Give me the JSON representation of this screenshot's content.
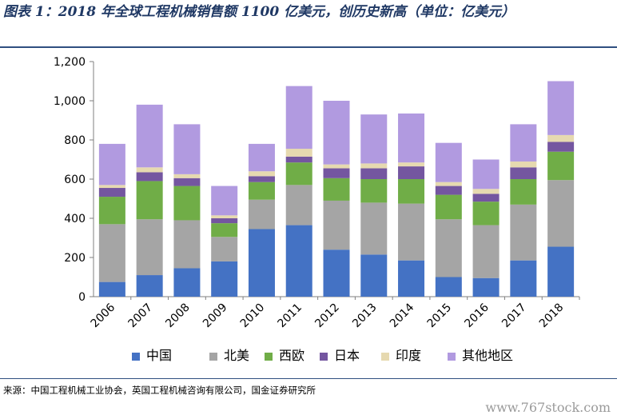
{
  "header": {
    "title": "图表 1：2018 年全球工程机械销售额 1100 亿美元，创历史新高（单位：亿美元）"
  },
  "footer": {
    "source": "来源：中国工程机械工业协会，英国工程机械咨询有限公司，国金证券研究所",
    "watermark": "www.767stock.com"
  },
  "colors": {
    "axis": "#7f7f7f",
    "rule": "#2f4f80",
    "title": "#1f3864"
  },
  "chart_data": {
    "type": "bar",
    "stacked": true,
    "categories": [
      "2006",
      "2007",
      "2008",
      "2009",
      "2010",
      "2011",
      "2012",
      "2013",
      "2014",
      "2015",
      "2016",
      "2017",
      "2018"
    ],
    "ylim": [
      0,
      1200
    ],
    "yticks": [
      0,
      200,
      400,
      600,
      800,
      1000,
      1200
    ],
    "ytick_labels": [
      "0",
      "200",
      "400",
      "600",
      "800",
      "1,000",
      "1,200"
    ],
    "grid": false,
    "legend": "bottom",
    "series": [
      {
        "name": "中国",
        "color": "#4472c4",
        "values": [
          75,
          110,
          145,
          180,
          345,
          365,
          240,
          215,
          185,
          100,
          95,
          185,
          255
        ]
      },
      {
        "name": "北美",
        "color": "#a5a5a5",
        "values": [
          295,
          285,
          245,
          125,
          150,
          205,
          250,
          265,
          290,
          295,
          270,
          285,
          340
        ]
      },
      {
        "name": "西欧",
        "color": "#70ad47",
        "values": [
          140,
          195,
          175,
          70,
          90,
          115,
          115,
          120,
          125,
          125,
          120,
          130,
          145
        ]
      },
      {
        "name": "日本",
        "color": "#7456a0",
        "values": [
          45,
          45,
          40,
          25,
          30,
          30,
          50,
          55,
          65,
          45,
          40,
          60,
          50
        ]
      },
      {
        "name": "印度",
        "color": "#e6d9b0",
        "values": [
          15,
          25,
          20,
          15,
          25,
          40,
          20,
          25,
          20,
          20,
          25,
          30,
          35
        ]
      },
      {
        "name": "其他地区",
        "color": "#b19ae0",
        "values": [
          210,
          320,
          255,
          150,
          140,
          320,
          325,
          250,
          250,
          200,
          150,
          190,
          275
        ]
      }
    ]
  }
}
